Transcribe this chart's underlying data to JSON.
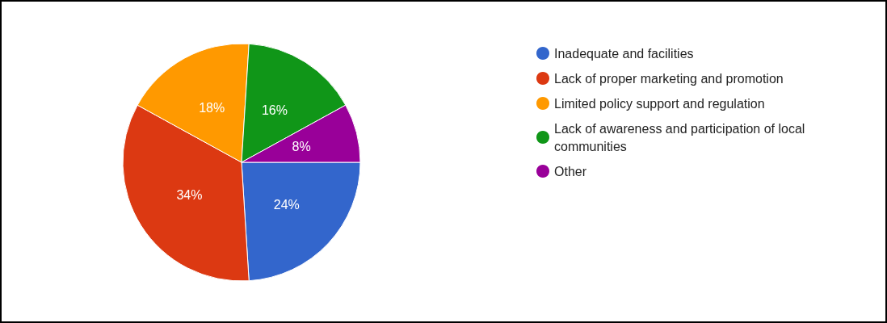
{
  "chart_data": {
    "type": "pie",
    "categories": [
      "Inadequate and facilities",
      "Lack of proper marketing and promotion",
      "Limited policy support and regulation",
      "Lack of awareness and participation of local communities",
      "Other"
    ],
    "values": [
      24,
      34,
      18,
      16,
      8
    ],
    "value_labels": [
      "24%",
      "34%",
      "18%",
      "16%",
      "8%"
    ],
    "colors": [
      "#3366cc",
      "#dc3912",
      "#ff9900",
      "#109618",
      "#990099"
    ],
    "legend": "right"
  }
}
